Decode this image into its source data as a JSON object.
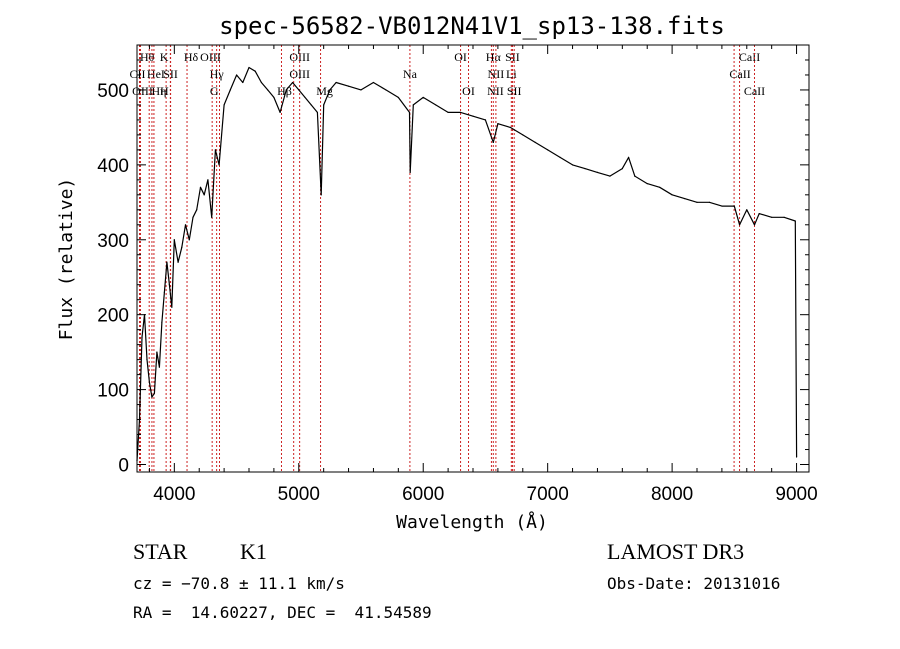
{
  "chart_data": {
    "type": "line",
    "title": "spec-56582-VB012N41V1_sp13-138.fits",
    "xlabel": "Wavelength (Å)",
    "ylabel": "Flux (relative)",
    "xlim": [
      3700,
      9100
    ],
    "ylim": [
      -10,
      560
    ],
    "x_ticks": [
      4000,
      5000,
      6000,
      7000,
      8000,
      9000
    ],
    "x_tick_labels": [
      "4000",
      "5000",
      "6000",
      "7000",
      "8000",
      "9000"
    ],
    "y_ticks": [
      0,
      100,
      200,
      300,
      400,
      500
    ],
    "y_tick_labels": [
      "0",
      "100",
      "200",
      "300",
      "400",
      "500"
    ],
    "grid": false,
    "series": [
      {
        "name": "spectrum",
        "color": "#000000",
        "x": [
          3700,
          3720,
          3740,
          3760,
          3780,
          3800,
          3820,
          3840,
          3860,
          3880,
          3900,
          3920,
          3940,
          3960,
          3980,
          4000,
          4030,
          4060,
          4090,
          4120,
          4150,
          4180,
          4210,
          4240,
          4270,
          4300,
          4330,
          4360,
          4400,
          4450,
          4500,
          4550,
          4600,
          4650,
          4700,
          4750,
          4800,
          4850,
          4900,
          4950,
          5000,
          5050,
          5100,
          5150,
          5180,
          5200,
          5250,
          5300,
          5400,
          5500,
          5600,
          5700,
          5800,
          5890,
          5895,
          5920,
          6000,
          6100,
          6200,
          6300,
          6400,
          6500,
          6563,
          6600,
          6700,
          6800,
          6900,
          7000,
          7100,
          7200,
          7300,
          7400,
          7500,
          7600,
          7650,
          7700,
          7800,
          7900,
          8000,
          8100,
          8200,
          8300,
          8400,
          8500,
          8542,
          8600,
          8662,
          8700,
          8800,
          8900,
          8990,
          9000
        ],
        "y": [
          5,
          60,
          170,
          200,
          140,
          110,
          90,
          95,
          150,
          130,
          190,
          230,
          270,
          240,
          210,
          300,
          270,
          290,
          320,
          300,
          330,
          340,
          370,
          360,
          380,
          330,
          420,
          400,
          480,
          500,
          520,
          510,
          530,
          525,
          510,
          500,
          490,
          470,
          500,
          510,
          500,
          490,
          480,
          470,
          360,
          480,
          500,
          510,
          505,
          500,
          510,
          500,
          490,
          470,
          390,
          480,
          490,
          480,
          470,
          470,
          465,
          460,
          430,
          455,
          450,
          440,
          430,
          420,
          410,
          400,
          395,
          390,
          385,
          395,
          410,
          385,
          375,
          370,
          360,
          355,
          350,
          350,
          345,
          345,
          320,
          340,
          320,
          335,
          330,
          330,
          325,
          10
        ]
      }
    ],
    "spectral_lines": [
      {
        "label": "CII",
        "wl": 3720,
        "row": 2,
        "dx": -2
      },
      {
        "label": "OIII",
        "wl": 3728,
        "row": 3,
        "dx": 2
      },
      {
        "label": "Hθ",
        "wl": 3798,
        "row": 1,
        "dx": -2
      },
      {
        "label": "HeI",
        "wl": 3820,
        "row": 2,
        "dx": 4
      },
      {
        "label": "Hη",
        "wl": 3836,
        "row": 3,
        "dx": 5
      },
      {
        "label": "K",
        "wl": 3934,
        "row": 1,
        "dx": -2
      },
      {
        "label": "SII",
        "wl": 3970,
        "row": 2,
        "dx": 0
      },
      {
        "label": "H",
        "wl": 3968,
        "row": 3,
        "dx": -6
      },
      {
        "label": "Hδ",
        "wl": 4102,
        "row": 1,
        "dx": 4
      },
      {
        "label": "OIII",
        "wl": 4363,
        "row": 1,
        "dx": -9
      },
      {
        "label": "Hγ",
        "wl": 4340,
        "row": 2,
        "dx": 0
      },
      {
        "label": "G",
        "wl": 4304,
        "row": 3,
        "dx": 2
      },
      {
        "label": "OIII",
        "wl": 4959,
        "row": 1,
        "dx": 6
      },
      {
        "label": "OIII",
        "wl": 5007,
        "row": 2,
        "dx": 0
      },
      {
        "label": "Hβ",
        "wl": 4861,
        "row": 3,
        "dx": 3
      },
      {
        "label": "Mg",
        "wl": 5175,
        "row": 3,
        "dx": 4
      },
      {
        "label": "Na",
        "wl": 5893,
        "row": 2,
        "dx": 0
      },
      {
        "label": "OI",
        "wl": 6300,
        "row": 1,
        "dx": 0
      },
      {
        "label": "OI",
        "wl": 6364,
        "row": 3,
        "dx": 0
      },
      {
        "label": "Hα",
        "wl": 6563,
        "row": 1,
        "dx": 0
      },
      {
        "label": "NII",
        "wl": 6584,
        "row": 2,
        "dx": 0
      },
      {
        "label": "NII",
        "wl": 6548,
        "row": 3,
        "dx": 4
      },
      {
        "label": "SII",
        "wl": 6717,
        "row": 1,
        "dx": 0
      },
      {
        "label": "Li",
        "wl": 6708,
        "row": 2,
        "dx": 0
      },
      {
        "label": "SII",
        "wl": 6731,
        "row": 3,
        "dx": 0
      },
      {
        "label": "CaII",
        "wl": 8542,
        "row": 1,
        "dx": 10
      },
      {
        "label": "CaII",
        "wl": 8498,
        "row": 2,
        "dx": 6
      },
      {
        "label": "CaII",
        "wl": 8662,
        "row": 3,
        "dx": 0
      }
    ]
  },
  "info": {
    "object_class": "STAR",
    "subclass": "K1",
    "survey": "LAMOST DR3",
    "redshift": "cz = −70.8 ± 11.1 km/s",
    "obs_date": "Obs-Date: 20131016",
    "coords": "RA =  14.60227, DEC =  41.54589"
  },
  "colors": {
    "line_marker": "#cc2222",
    "spectrum": "#000000",
    "axes": "#000000"
  }
}
